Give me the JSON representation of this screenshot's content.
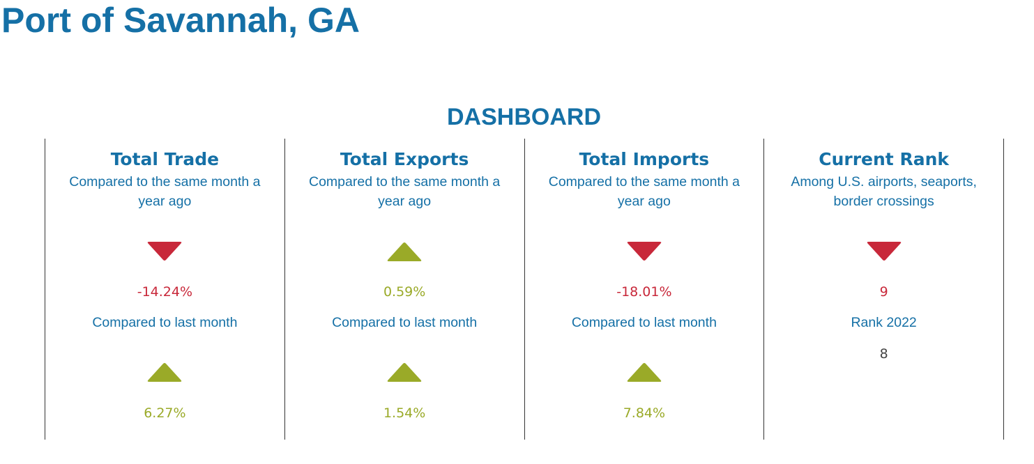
{
  "page": {
    "title": "Port of Savannah, GA",
    "dashboard_heading": "DASHBOARD"
  },
  "colors": {
    "brand_blue": "#1570a6",
    "down_red": "#c8283a",
    "up_green": "#9aaa28"
  },
  "panels": [
    {
      "title": "Total Trade",
      "subtitle": "Compared to the same month a year ago",
      "year_direction": "down",
      "year_change": "-14.24%",
      "compare_label": "Compared to last month",
      "month_direction": "up",
      "month_change": "6.27%"
    },
    {
      "title": "Total Exports",
      "subtitle": "Compared to the same month a year ago",
      "year_direction": "up",
      "year_change": "0.59%",
      "compare_label": "Compared to last month",
      "month_direction": "up",
      "month_change": "1.54%"
    },
    {
      "title": "Total Imports",
      "subtitle": "Compared to the same month a year ago",
      "year_direction": "down",
      "year_change": "-18.01%",
      "compare_label": "Compared to last month",
      "month_direction": "up",
      "month_change": "7.84%"
    },
    {
      "title": "Current Rank",
      "subtitle": "Among U.S. airports, seaports, border crossings",
      "direction": "down",
      "current_rank": "9",
      "rank_label": "Rank 2022",
      "previous_rank": "8"
    }
  ]
}
